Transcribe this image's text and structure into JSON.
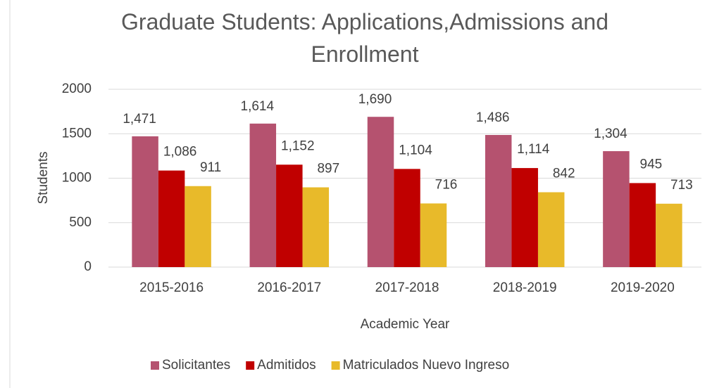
{
  "chart_data": {
    "type": "bar",
    "title": "Graduate Students:  Applications,Admissions and Enrollment",
    "x_label": "Academic Year",
    "y_label": "Students",
    "categories": [
      "2015-2016",
      "2016-2017",
      "2017-2018",
      "2018-2019",
      "2019-2020"
    ],
    "series": [
      {
        "name": "Solicitantes",
        "color": "#b5526f",
        "values": [
          1471,
          1614,
          1690,
          1486,
          1304
        ],
        "value_labels": [
          "1,471",
          "1,614",
          "1,690",
          "1,486",
          "1,304"
        ]
      },
      {
        "name": "Admitidos",
        "color": "#c00000",
        "values": [
          1086,
          1152,
          1104,
          1114,
          945
        ],
        "value_labels": [
          "1,086",
          "1,152",
          "1,104",
          "1,114",
          "945"
        ]
      },
      {
        "name": "Matriculados Nuevo Ingreso",
        "color": "#e8ba2a",
        "values": [
          911,
          897,
          716,
          842,
          713
        ],
        "value_labels": [
          "911",
          "897",
          "716",
          "842",
          "713"
        ]
      }
    ],
    "ylim": [
      0,
      2000
    ],
    "yticks": [
      0,
      500,
      1000,
      1500,
      2000
    ],
    "grid": true,
    "legend": "bottom"
  }
}
